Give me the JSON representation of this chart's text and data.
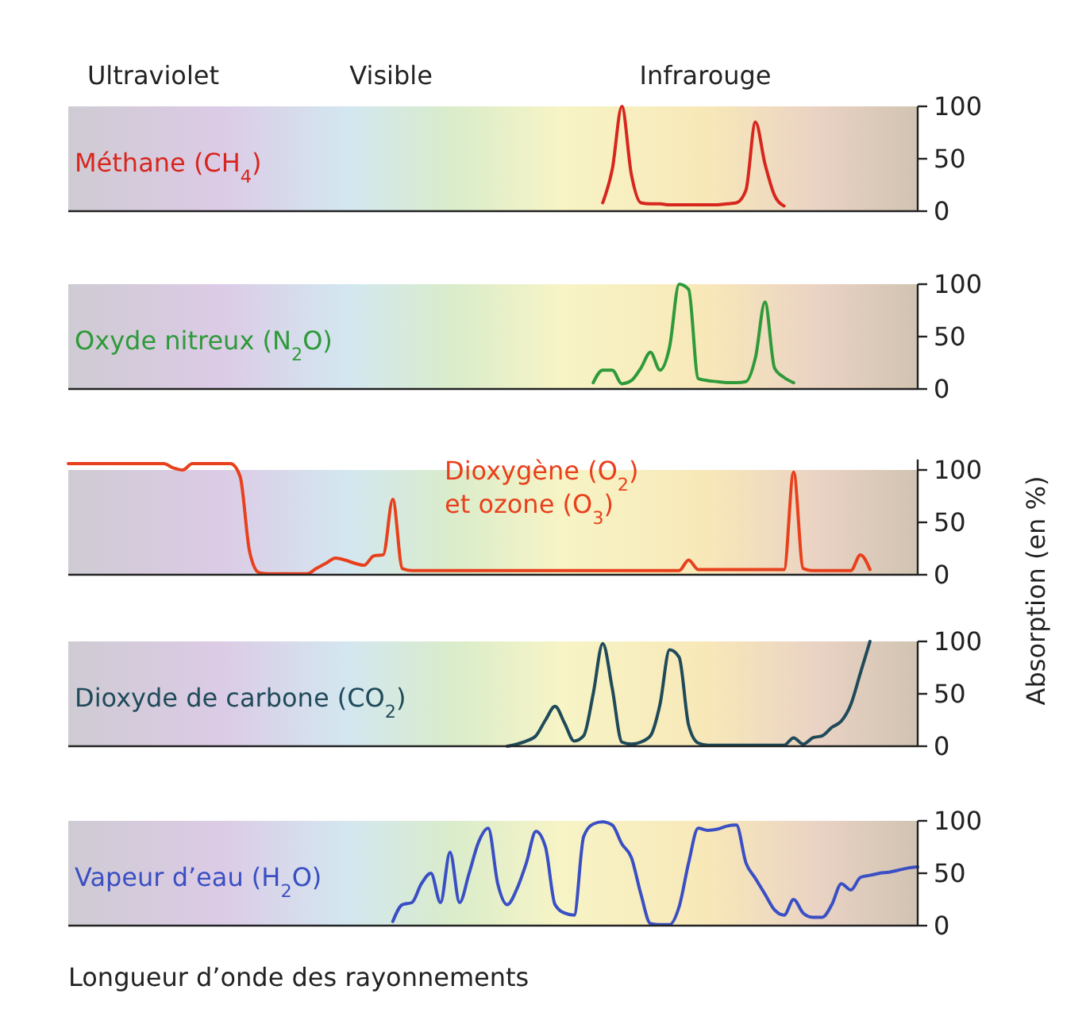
{
  "chart_data": [
    {
      "type": "line",
      "annotations": [
        "Ultraviolet",
        "Visible",
        "Infrarouge"
      ],
      "categories": [
        null,
        null,
        null,
        null,
        null,
        null,
        null,
        null,
        null,
        null,
        null,
        null,
        null,
        null,
        null,
        null,
        null,
        null,
        null,
        null,
        null,
        null,
        null,
        null,
        null,
        null,
        null,
        null,
        null,
        null,
        null,
        null,
        null,
        null,
        null,
        null,
        null,
        null,
        null,
        null,
        null,
        null,
        null,
        null,
        null,
        null,
        null,
        null,
        null,
        null,
        null,
        null,
        null,
        null,
        null,
        null,
        null,
        null,
        null,
        null,
        null,
        null,
        null,
        null,
        null,
        null,
        null,
        null,
        null,
        null,
        null,
        null,
        null,
        null,
        null,
        null,
        null,
        null,
        null,
        null,
        null,
        null,
        null,
        null,
        null,
        null,
        null,
        null,
        null,
        null
      ],
      "ylim": [
        0,
        100
      ],
      "yticks": [
        0,
        50,
        100
      ],
      "tick_labels": "y",
      "series": [
        {
          "name": "Méthane (CH$_{4}$)",
          "color": "#d7261e",
          "values": [
            null,
            null,
            null,
            null,
            null,
            null,
            null,
            null,
            null,
            null,
            null,
            null,
            null,
            null,
            null,
            null,
            null,
            null,
            null,
            null,
            null,
            null,
            null,
            null,
            null,
            null,
            null,
            null,
            null,
            null,
            null,
            null,
            null,
            null,
            null,
            null,
            null,
            null,
            null,
            null,
            null,
            null,
            null,
            null,
            null,
            null,
            null,
            null,
            null,
            null,
            null,
            null,
            null,
            null,
            null,
            null,
            8,
            40,
            100,
            35,
            8,
            7,
            7,
            6,
            6,
            6,
            6,
            6,
            6,
            7,
            8,
            20,
            85,
            45,
            15,
            5,
            null,
            null,
            null,
            null,
            null,
            null,
            null,
            null,
            null,
            null,
            null,
            null,
            null,
            null
          ]
        }
      ]
    },
    {
      "type": "line",
      "categories": [
        null,
        null,
        null,
        null,
        null,
        null,
        null,
        null,
        null,
        null,
        null,
        null,
        null,
        null,
        null,
        null,
        null,
        null,
        null,
        null,
        null,
        null,
        null,
        null,
        null,
        null,
        null,
        null,
        null,
        null,
        null,
        null,
        null,
        null,
        null,
        null,
        null,
        null,
        null,
        null,
        null,
        null,
        null,
        null,
        null,
        null,
        null,
        null,
        null,
        null,
        null,
        null,
        null,
        null,
        null,
        null,
        null,
        null,
        null,
        null,
        null,
        null,
        null,
        null,
        null,
        null,
        null,
        null,
        null,
        null,
        null,
        null,
        null,
        null,
        null,
        null,
        null,
        null,
        null,
        null,
        null,
        null,
        null,
        null,
        null,
        null,
        null,
        null,
        null,
        null
      ],
      "ylim": [
        0,
        100
      ],
      "yticks": [
        0,
        50,
        100
      ],
      "tick_labels": "y",
      "series": [
        {
          "name": "Oxyde nitreux (N$_{2}$O)",
          "color": "#2e9a3a",
          "values": [
            null,
            null,
            null,
            null,
            null,
            null,
            null,
            null,
            null,
            null,
            null,
            null,
            null,
            null,
            null,
            null,
            null,
            null,
            null,
            null,
            null,
            null,
            null,
            null,
            null,
            null,
            null,
            null,
            null,
            null,
            null,
            null,
            null,
            null,
            null,
            null,
            null,
            null,
            null,
            null,
            null,
            null,
            null,
            null,
            null,
            null,
            null,
            null,
            null,
            null,
            null,
            null,
            null,
            null,
            null,
            6,
            18,
            18,
            5,
            8,
            20,
            35,
            18,
            40,
            100,
            95,
            10,
            8,
            7,
            6,
            6,
            7,
            30,
            83,
            20,
            11,
            6,
            null,
            null,
            null,
            null,
            null,
            null,
            null,
            null,
            null,
            null,
            null,
            null,
            null
          ]
        }
      ]
    },
    {
      "type": "line",
      "ylabel": "Absorption (en %)",
      "categories": [
        null,
        null,
        null,
        null,
        null,
        null,
        null,
        null,
        null,
        null,
        null,
        null,
        null,
        null,
        null,
        null,
        null,
        null,
        null,
        null,
        null,
        null,
        null,
        null,
        null,
        null,
        null,
        null,
        null,
        null,
        null,
        null,
        null,
        null,
        null,
        null,
        null,
        null,
        null,
        null,
        null,
        null,
        null,
        null,
        null,
        null,
        null,
        null,
        null,
        null,
        null,
        null,
        null,
        null,
        null,
        null,
        null,
        null,
        null,
        null,
        null,
        null,
        null,
        null,
        null,
        null,
        null,
        null,
        null,
        null,
        null,
        null,
        null,
        null,
        null,
        null,
        null,
        null,
        null,
        null,
        null,
        null,
        null,
        null,
        null,
        null,
        null,
        null,
        null,
        null
      ],
      "ylim": [
        0,
        110
      ],
      "yticks": [
        0,
        50,
        100
      ],
      "tick_labels": "y",
      "series": [
        {
          "name": "Dioxygène (O$_{2}$)\net ozone (O$_{3}$)",
          "color": "#e8401c",
          "values": [
            106,
            106,
            106,
            106,
            106,
            106,
            106,
            106,
            106,
            106,
            106,
            102,
            100,
            106,
            106,
            106,
            106,
            106,
            94,
            22,
            2,
            1,
            1,
            1,
            1,
            1,
            6,
            11,
            16,
            14,
            11,
            9,
            18,
            19,
            72,
            6,
            4,
            4,
            4,
            4,
            4,
            4,
            4,
            4,
            4,
            4,
            4,
            4,
            4,
            4,
            4,
            4,
            4,
            4,
            4,
            4,
            4,
            4,
            4,
            4,
            4,
            4,
            4,
            4,
            4,
            14,
            5,
            5,
            5,
            5,
            5,
            5,
            5,
            5,
            5,
            5,
            98,
            6,
            4,
            4,
            4,
            4,
            4,
            19,
            5,
            null,
            null,
            null,
            null,
            null
          ]
        }
      ]
    },
    {
      "type": "line",
      "categories": [
        null,
        null,
        null,
        null,
        null,
        null,
        null,
        null,
        null,
        null,
        null,
        null,
        null,
        null,
        null,
        null,
        null,
        null,
        null,
        null,
        null,
        null,
        null,
        null,
        null,
        null,
        null,
        null,
        null,
        null,
        null,
        null,
        null,
        null,
        null,
        null,
        null,
        null,
        null,
        null,
        null,
        null,
        null,
        null,
        null,
        null,
        null,
        null,
        null,
        null,
        null,
        null,
        null,
        null,
        null,
        null,
        null,
        null,
        null,
        null,
        null,
        null,
        null,
        null,
        null,
        null,
        null,
        null,
        null,
        null,
        null,
        null,
        null,
        null,
        null,
        null,
        null,
        null,
        null,
        null,
        null,
        null,
        null,
        null,
        null,
        null,
        null,
        null,
        null,
        null
      ],
      "ylim": [
        0,
        100
      ],
      "yticks": [
        0,
        50,
        100
      ],
      "tick_labels": "y",
      "series": [
        {
          "name": "Dioxyde de carbone (CO$_{2}$)",
          "color": "#1f4a5a",
          "values": [
            null,
            null,
            null,
            null,
            null,
            null,
            null,
            null,
            null,
            null,
            null,
            null,
            null,
            null,
            null,
            null,
            null,
            null,
            null,
            null,
            null,
            null,
            null,
            null,
            null,
            null,
            null,
            null,
            null,
            null,
            null,
            null,
            null,
            null,
            null,
            null,
            null,
            null,
            null,
            null,
            null,
            null,
            null,
            null,
            null,
            null,
            0,
            2,
            5,
            10,
            25,
            38,
            22,
            5,
            10,
            50,
            98,
            55,
            4,
            2,
            4,
            10,
            40,
            92,
            85,
            20,
            3,
            1,
            1,
            1,
            1,
            1,
            1,
            1,
            1,
            1,
            8,
            2,
            8,
            10,
            18,
            24,
            40,
            70,
            100,
            null,
            null,
            null,
            null,
            null
          ]
        }
      ]
    },
    {
      "type": "line",
      "xlabel": "Longueur d’onde des rayonnements",
      "categories": [
        null,
        null,
        null,
        null,
        null,
        null,
        null,
        null,
        null,
        null,
        null,
        null,
        null,
        null,
        null,
        null,
        null,
        null,
        null,
        null,
        null,
        null,
        null,
        null,
        null,
        null,
        null,
        null,
        null,
        null,
        null,
        null,
        null,
        null,
        null,
        null,
        null,
        null,
        null,
        null,
        null,
        null,
        null,
        null,
        null,
        null,
        null,
        null,
        null,
        null,
        null,
        null,
        null,
        null,
        null,
        null,
        null,
        null,
        null,
        null,
        null,
        null,
        null,
        null,
        null,
        null,
        null,
        null,
        null,
        null,
        null,
        null,
        null,
        null,
        null,
        null,
        null,
        null,
        null,
        null,
        null,
        null,
        null,
        null,
        null,
        null,
        null,
        null,
        null,
        null
      ],
      "ylim": [
        0,
        100
      ],
      "yticks": [
        0,
        50,
        100
      ],
      "tick_labels": "y",
      "series": [
        {
          "name": "Vapeur d’eau (H$_{2}$O)",
          "color": "#3a4fc4",
          "values": [
            null,
            null,
            null,
            null,
            null,
            null,
            null,
            null,
            null,
            null,
            null,
            null,
            null,
            null,
            null,
            null,
            null,
            null,
            null,
            null,
            null,
            null,
            null,
            null,
            null,
            null,
            null,
            null,
            null,
            null,
            null,
            null,
            null,
            null,
            4,
            20,
            22,
            40,
            50,
            22,
            70,
            22,
            50,
            80,
            93,
            40,
            20,
            35,
            60,
            90,
            75,
            20,
            12,
            10,
            85,
            97,
            99,
            96,
            78,
            65,
            30,
            2,
            1,
            1,
            18,
            60,
            93,
            91,
            92,
            95,
            96,
            60,
            45,
            30,
            15,
            10,
            25,
            12,
            8,
            8,
            20,
            40,
            34,
            46,
            48,
            50,
            51,
            53,
            55,
            56
          ]
        }
      ]
    }
  ]
}
